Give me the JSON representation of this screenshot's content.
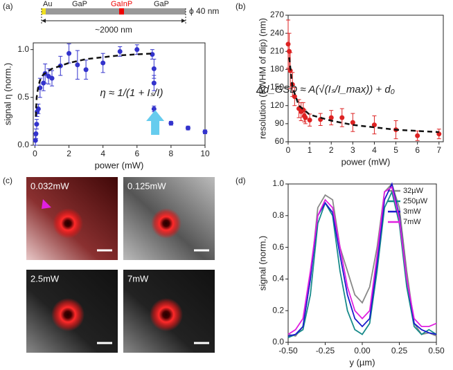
{
  "schematic": {
    "labels": [
      "Au",
      "GaP",
      "GaInP",
      "GaP"
    ],
    "diameter": "ϕ 40 nm",
    "length": "~2000 nm"
  },
  "images": {
    "panel_label": "(c)",
    "labels": [
      "0.032mW",
      "0.125mW",
      "2.5mW",
      "7mW"
    ]
  },
  "chart_data": [
    {
      "type": "scatter",
      "panel_label": "(a)",
      "x_label": "power (mW)",
      "y_label": "signal η (norm.)",
      "annotation": "η ≈ 1/(1 + Iₛ/I)",
      "color": "#3333cc",
      "x": [
        0.03,
        0.06,
        0.1,
        0.13,
        0.2,
        0.3,
        0.5,
        0.6,
        0.8,
        1.0,
        1.5,
        2,
        2.5,
        3,
        4,
        5,
        6,
        6.9,
        7,
        7,
        7,
        8,
        9,
        10
      ],
      "values": [
        0.05,
        0.12,
        0.22,
        0.35,
        0.38,
        0.6,
        0.65,
        0.75,
        0.72,
        0.7,
        0.83,
        0.96,
        0.84,
        0.79,
        0.86,
        0.98,
        1.0,
        0.95,
        0.8,
        0.65,
        0.38,
        0.23,
        0.18,
        0.14
      ],
      "errors": [
        0.05,
        0.05,
        0.05,
        0.05,
        0.05,
        0.1,
        0.08,
        0.1,
        0.08,
        0.08,
        0.1,
        0.1,
        0.15,
        0.1,
        0.1,
        0.05,
        0.05,
        0.05,
        0.1,
        0.08,
        0.03,
        0.02,
        0.02,
        0.02
      ],
      "fit": {
        "x": [
          0.05,
          0.1,
          0.2,
          0.3,
          0.5,
          1,
          2,
          3,
          4,
          5,
          6,
          7
        ],
        "values": [
          0.3,
          0.5,
          0.62,
          0.68,
          0.74,
          0.8,
          0.86,
          0.9,
          0.92,
          0.94,
          0.95,
          0.96
        ]
      },
      "xlim": [
        -0.1,
        10
      ],
      "ylim": [
        0,
        1.07
      ],
      "xticks": [
        0,
        2,
        4,
        6,
        8,
        10
      ],
      "yticks": [
        {
          "value": 0,
          "label": "0.0"
        },
        0.5,
        {
          "value": 1,
          "label": "1.0"
        }
      ]
    },
    {
      "type": "scatter",
      "panel_label": "(b)",
      "x_label": "power (mW)",
      "y_label": "resolution (FWHM of dip)  (nm)",
      "annotation": "Δd_GSD ≈ A(√(Iₛ/I_max)) + d₀",
      "color": "#dd2222",
      "x": [
        0,
        0.05,
        0.1,
        0.2,
        0.3,
        0.5,
        0.6,
        0.7,
        0.75,
        0.8,
        1,
        1.5,
        2,
        2.5,
        3,
        4,
        5,
        6,
        7
      ],
      "values": [
        222,
        210,
        178,
        155,
        135,
        115,
        110,
        113,
        103,
        100,
        96,
        97,
        100,
        100,
        92,
        88,
        80,
        70,
        73
      ],
      "errors": [
        40,
        30,
        30,
        20,
        15,
        15,
        15,
        12,
        10,
        10,
        10,
        10,
        12,
        15,
        15,
        15,
        15,
        8,
        8
      ],
      "fit": {
        "x": [
          0.05,
          0.2,
          0.5,
          1,
          2,
          3,
          4,
          5,
          6,
          7
        ],
        "values": [
          200,
          150,
          120,
          105,
          95,
          88,
          84,
          80,
          78,
          76
        ]
      },
      "xlim": [
        0,
        7.2
      ],
      "ylim": [
        60,
        270
      ],
      "xticks": [
        0,
        1,
        2,
        3,
        4,
        5,
        6,
        7
      ],
      "yticks": [
        60,
        90,
        120,
        150,
        180,
        210,
        240,
        270
      ]
    },
    {
      "type": "line",
      "panel_label": "(d)",
      "x_label": "y (µm)",
      "y_label": "signal (norm.)",
      "x": [
        -0.5,
        -0.45,
        -0.4,
        -0.35,
        -0.3,
        -0.25,
        -0.2,
        -0.15,
        -0.1,
        -0.05,
        0,
        0.05,
        0.1,
        0.15,
        0.2,
        0.25,
        0.3,
        0.35,
        0.4,
        0.45,
        0.5
      ],
      "series": [
        {
          "name": "32µW",
          "color": "#888888",
          "values": [
            0.05,
            0.04,
            0.1,
            0.4,
            0.85,
            0.93,
            0.9,
            0.6,
            0.45,
            0.3,
            0.25,
            0.35,
            0.6,
            0.95,
            1.0,
            0.85,
            0.45,
            0.12,
            0.05,
            0.06,
            0.04
          ]
        },
        {
          "name": "250µW",
          "color": "#178a8a",
          "values": [
            0.03,
            0.05,
            0.08,
            0.3,
            0.75,
            0.88,
            0.8,
            0.45,
            0.2,
            0.08,
            0.05,
            0.12,
            0.45,
            0.85,
            0.95,
            0.75,
            0.35,
            0.1,
            0.05,
            0.08,
            0.05
          ]
        },
        {
          "name": "3mW",
          "color": "#1a1acc",
          "values": [
            0.04,
            0.05,
            0.1,
            0.4,
            0.8,
            0.88,
            0.82,
            0.55,
            0.3,
            0.15,
            0.1,
            0.15,
            0.5,
            0.9,
            1.0,
            0.8,
            0.4,
            0.12,
            0.08,
            0.06,
            0.05
          ]
        },
        {
          "name": "7mW",
          "color": "#e020e0",
          "values": [
            0.05,
            0.08,
            0.15,
            0.45,
            0.8,
            0.9,
            0.85,
            0.6,
            0.35,
            0.2,
            0.15,
            0.2,
            0.55,
            0.95,
            0.98,
            0.78,
            0.4,
            0.15,
            0.1,
            0.1,
            0.12
          ]
        }
      ],
      "xlim": [
        -0.5,
        0.5
      ],
      "ylim": [
        0,
        1
      ],
      "xticks": [
        {
          "value": -0.5,
          "label": "-0.50"
        },
        -0.25,
        {
          "value": 0,
          "label": "0.00"
        },
        0.25,
        {
          "value": 0.5,
          "label": "0.50"
        }
      ],
      "yticks": [
        {
          "value": 0,
          "label": "0.0"
        },
        0.2,
        0.4,
        0.6,
        0.8,
        {
          "value": 1,
          "label": "1.0"
        }
      ]
    }
  ]
}
